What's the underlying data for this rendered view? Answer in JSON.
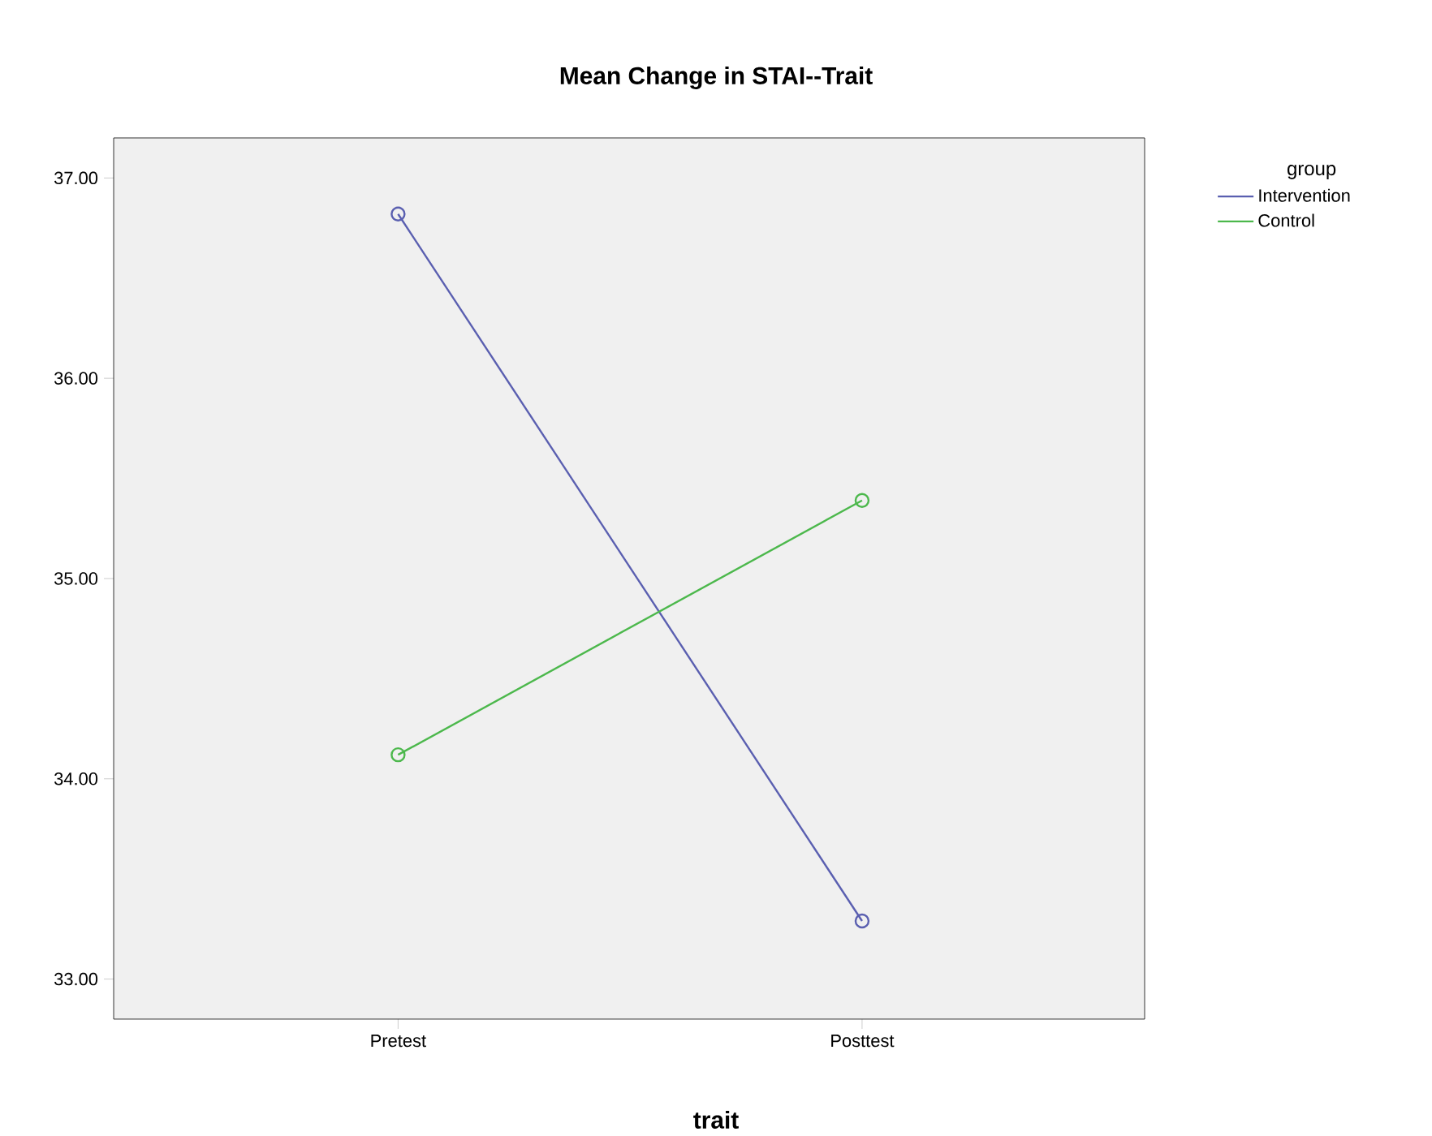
{
  "chart_data": {
    "type": "line",
    "title": "Mean Change in STAI--Trait",
    "xlabel": "trait",
    "legend_title": "group",
    "categories": [
      "Pretest",
      "Posttest"
    ],
    "series": [
      {
        "name": "Intervention",
        "color": "#5a5fb0",
        "values": [
          36.82,
          33.29
        ]
      },
      {
        "name": "Control",
        "color": "#4cb84c",
        "values": [
          34.12,
          35.39
        ]
      }
    ],
    "ylim": [
      32.8,
      37.2
    ],
    "yticks": [
      {
        "value": 33,
        "label": "33.00"
      },
      {
        "value": 34,
        "label": "34.00"
      },
      {
        "value": 35,
        "label": "35.00"
      },
      {
        "value": 36,
        "label": "36.00"
      },
      {
        "value": 37,
        "label": "37.00"
      }
    ],
    "grid": false,
    "legend": "top right",
    "marker": "circle",
    "line_style": "solid"
  }
}
